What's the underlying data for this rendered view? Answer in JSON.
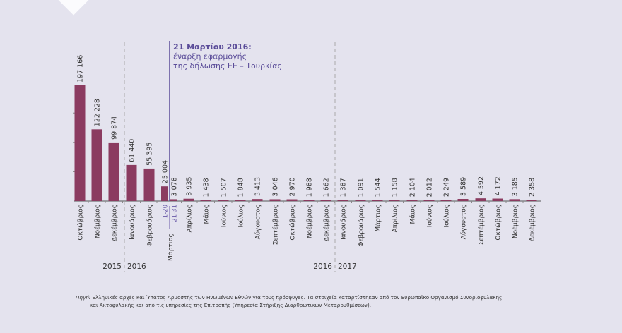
{
  "chart_data": {
    "type": "bar",
    "bar_color": "#8b3b60",
    "annotation_color": "#5b4d99",
    "ylim": [
      0,
      200000
    ],
    "grid": false,
    "bars": [
      {
        "label": "Οκτώβριος",
        "value": 197166,
        "value_label": "197 166"
      },
      {
        "label": "Νοέμβριος",
        "value": 122228,
        "value_label": "122 228"
      },
      {
        "label": "Δεκέμβριος",
        "value": 99874,
        "value_label": "99 874"
      },
      {
        "label": "Ιανουάριος",
        "value": 61440,
        "value_label": "61 440"
      },
      {
        "label": "Φεβρουάριος",
        "value": 55395,
        "value_label": "55 395"
      },
      {
        "label": "1-20",
        "value": 25004,
        "value_label": "25 004"
      },
      {
        "label": "21-31",
        "value": 3078,
        "value_label": "3 078"
      },
      {
        "label": "Απρίλιος",
        "value": 3935,
        "value_label": "3 935"
      },
      {
        "label": "Μάιος",
        "value": 1438,
        "value_label": "1 438"
      },
      {
        "label": "Ιούνιος",
        "value": 1507,
        "value_label": "1 507"
      },
      {
        "label": "Ιούλιος",
        "value": 1848,
        "value_label": "1 848"
      },
      {
        "label": "Αύγουστος",
        "value": 3413,
        "value_label": "3 413"
      },
      {
        "label": "Σεπτέμβριος",
        "value": 3046,
        "value_label": "3 046"
      },
      {
        "label": "Οκτώβριος",
        "value": 2970,
        "value_label": "2 970"
      },
      {
        "label": "Νοέμβριος",
        "value": 1988,
        "value_label": "1 988"
      },
      {
        "label": "Δεκέμβριος",
        "value": 1662,
        "value_label": "1 662"
      },
      {
        "label": "Ιανουάριος",
        "value": 1387,
        "value_label": "1 387"
      },
      {
        "label": "Φεβρουάριος",
        "value": 1091,
        "value_label": "1 091"
      },
      {
        "label": "Μάρτιος",
        "value": 1544,
        "value_label": "1 544"
      },
      {
        "label": "Απρίλιος",
        "value": 1158,
        "value_label": "1 158"
      },
      {
        "label": "Μάιος",
        "value": 2104,
        "value_label": "2 104"
      },
      {
        "label": "Ιούνιος",
        "value": 2012,
        "value_label": "2 012"
      },
      {
        "label": "Ιούλιος",
        "value": 2249,
        "value_label": "2 249"
      },
      {
        "label": "Αύγουστος",
        "value": 3589,
        "value_label": "3 589"
      },
      {
        "label": "Σεπτέμβριος",
        "value": 4592,
        "value_label": "4 592"
      },
      {
        "label": "Οκτώβριος",
        "value": 4172,
        "value_label": "4 172"
      },
      {
        "label": "Νοέμβριος",
        "value": 3185,
        "value_label": "3 185"
      },
      {
        "label": "Δεκέμβριος",
        "value": 2358,
        "value_label": "2 358"
      }
    ],
    "march_group_label": "Μάρτιος",
    "years": [
      "2015",
      "2016",
      "2016",
      "2017"
    ],
    "annotation": [
      "21 Μαρτίου 2016:",
      "έναρξη εφαρμογής",
      "της δήλωσης ΕΕ – Τουρκίας"
    ]
  },
  "footnote": {
    "source_label": "Πηγή:",
    "line1": "Ελληνικές αρχές και Ύπατος Αρμοστής των Ηνωμένων Εθνών για τους πρόσφυγες. Τα στοιχεία καταρτίστηκαν από τον Ευρωπαϊκό Οργανισμό Συνοριοφυλακής",
    "line2": "και Ακτοφυλακής και από τις υπηρεσίες της Επιτροπής (Υπηρεσία Στήριξης Διαρθρωτικών Μεταρρυθμίσεων)."
  }
}
